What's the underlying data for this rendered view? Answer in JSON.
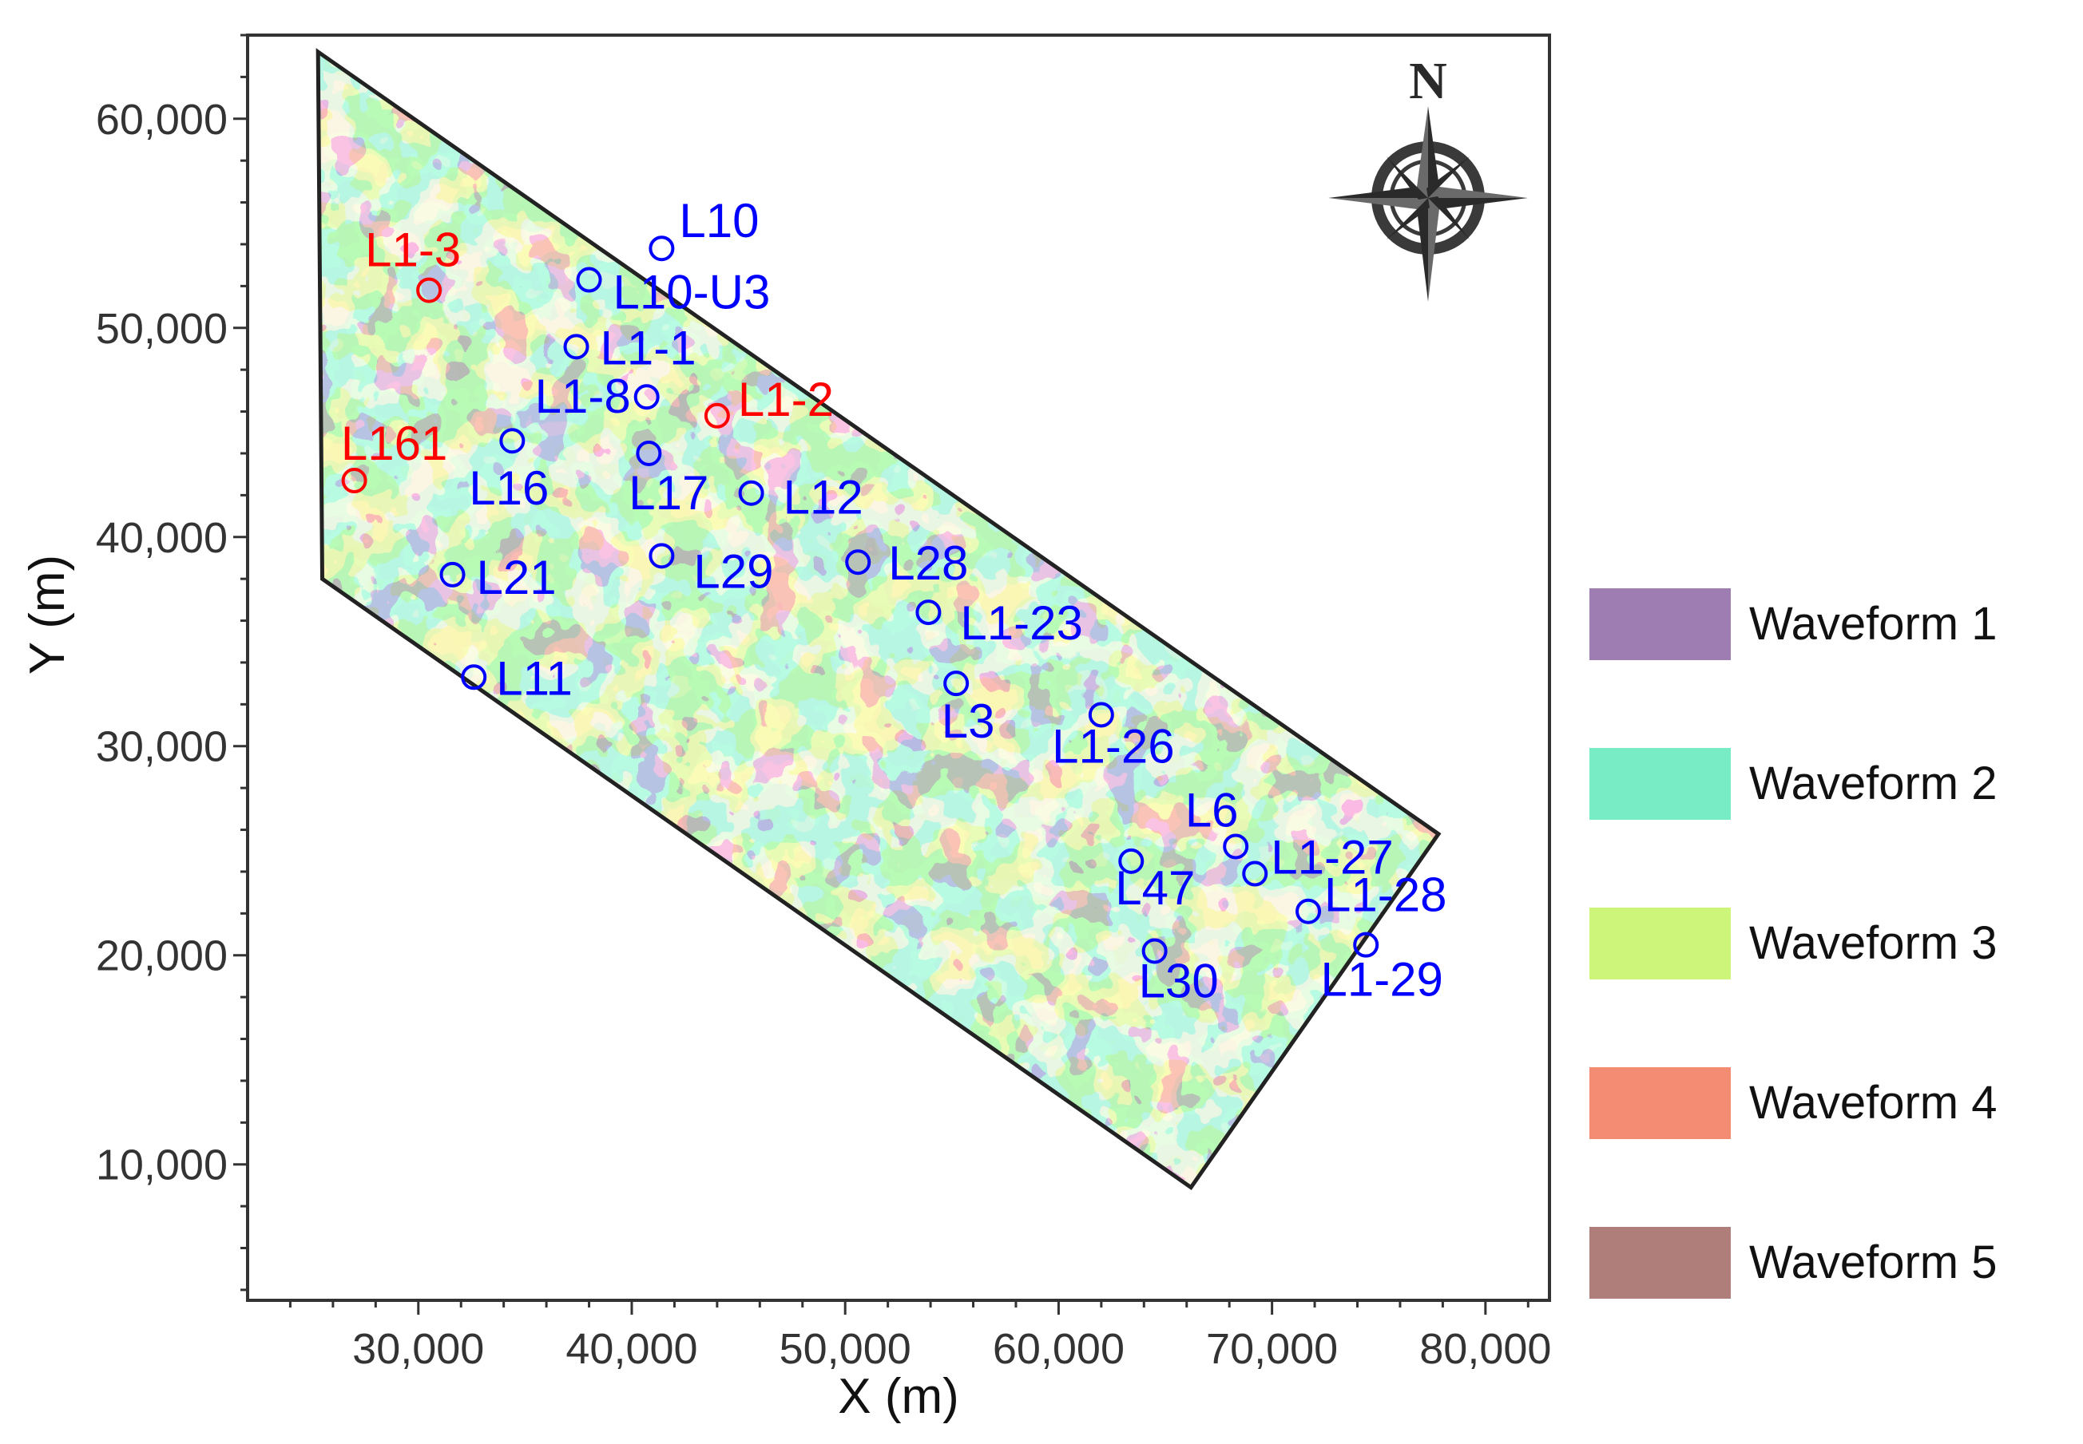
{
  "chart_data": {
    "type": "map",
    "xlabel": "X (m)",
    "ylabel": "Y (m)",
    "xlim": [
      22000,
      83000
    ],
    "ylim": [
      3500,
      64000
    ],
    "x_ticks": [
      30000,
      40000,
      50000,
      60000,
      70000,
      80000
    ],
    "x_tick_labels": [
      "30,000",
      "40,000",
      "50,000",
      "60,000",
      "70,000",
      "80,000"
    ],
    "y_ticks": [
      10000,
      20000,
      30000,
      40000,
      50000,
      60000
    ],
    "y_tick_labels": [
      "10,000",
      "20,000",
      "30,000",
      "40,000",
      "50,000",
      "60,000"
    ],
    "survey_boundary": [
      [
        25300,
        63200
      ],
      [
        77800,
        25800
      ],
      [
        66200,
        8900
      ],
      [
        25500,
        38000
      ]
    ],
    "north_arrow": {
      "label": "N"
    },
    "legend": [
      {
        "label": "Waveform 1",
        "color": "#9e7eb2"
      },
      {
        "label": "Waveform 2",
        "color": "#78ecc4"
      },
      {
        "label": "Waveform 3",
        "color": "#cdf57a"
      },
      {
        "label": "Waveform 4",
        "color": "#f48c74"
      },
      {
        "label": "Waveform 5",
        "color": "#af7e7a"
      }
    ],
    "wells": [
      {
        "name": "L10",
        "x": 41400,
        "y": 53800,
        "color": "#0000ff"
      },
      {
        "name": "L1-3",
        "x": 30500,
        "y": 51800,
        "color": "#ff0000"
      },
      {
        "name": "L10-U3",
        "x": 38000,
        "y": 52300,
        "color": "#0000ff"
      },
      {
        "name": "L1-1",
        "x": 37400,
        "y": 49100,
        "color": "#0000ff"
      },
      {
        "name": "L1-8",
        "x": 40700,
        "y": 46700,
        "color": "#0000ff"
      },
      {
        "name": "L1-2",
        "x": 44000,
        "y": 45800,
        "color": "#ff0000"
      },
      {
        "name": "L161",
        "x": 27000,
        "y": 42700,
        "color": "#ff0000"
      },
      {
        "name": "L16",
        "x": 34400,
        "y": 44600,
        "color": "#0000ff"
      },
      {
        "name": "L17",
        "x": 40800,
        "y": 44000,
        "color": "#0000ff"
      },
      {
        "name": "L12",
        "x": 45600,
        "y": 42100,
        "color": "#0000ff"
      },
      {
        "name": "L29",
        "x": 41400,
        "y": 39100,
        "color": "#0000ff"
      },
      {
        "name": "L28",
        "x": 50600,
        "y": 38800,
        "color": "#0000ff"
      },
      {
        "name": "L21",
        "x": 31600,
        "y": 38200,
        "color": "#0000ff"
      },
      {
        "name": "L1-23",
        "x": 53900,
        "y": 36400,
        "color": "#0000ff"
      },
      {
        "name": "L11",
        "x": 32600,
        "y": 33300,
        "color": "#0000ff"
      },
      {
        "name": "L3",
        "x": 55200,
        "y": 33000,
        "color": "#0000ff"
      },
      {
        "name": "L1-26",
        "x": 62000,
        "y": 31500,
        "color": "#0000ff"
      },
      {
        "name": "L6",
        "x": 68300,
        "y": 25200,
        "color": "#0000ff"
      },
      {
        "name": "L1-27",
        "x": 69200,
        "y": 23900,
        "color": "#0000ff"
      },
      {
        "name": "L47",
        "x": 63400,
        "y": 24500,
        "color": "#0000ff"
      },
      {
        "name": "L1-28",
        "x": 71700,
        "y": 22100,
        "color": "#0000ff"
      },
      {
        "name": "L30",
        "x": 64500,
        "y": 20200,
        "color": "#0000ff"
      },
      {
        "name": "L1-29",
        "x": 74400,
        "y": 20500,
        "color": "#0000ff"
      }
    ]
  }
}
